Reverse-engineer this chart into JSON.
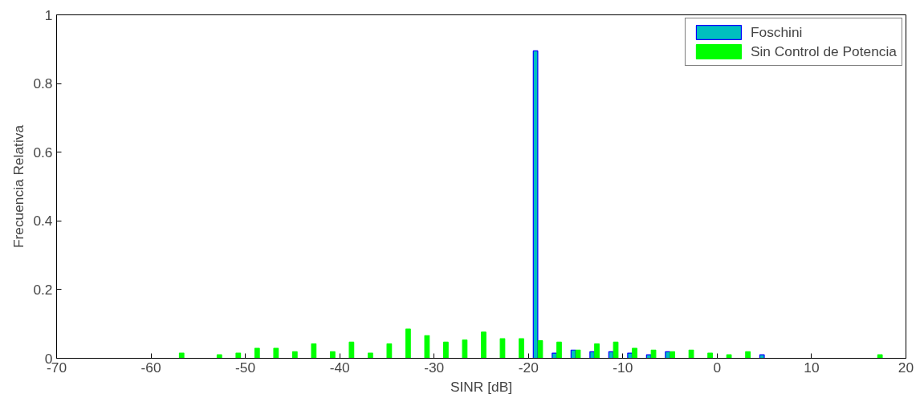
{
  "chart_data": {
    "type": "bar",
    "xlabel": "SINR [dB]",
    "ylabel": "Frecuencia Relativa",
    "x": [
      -69,
      -67,
      -65,
      -63,
      -61,
      -59,
      -57,
      -55,
      -53,
      -51,
      -49,
      -47,
      -45,
      -43,
      -41,
      -39,
      -37,
      -35,
      -33,
      -31,
      -29,
      -27,
      -25,
      -23,
      -21,
      -19,
      -17,
      -15,
      -13,
      -11,
      -9,
      -7,
      -5,
      -3,
      -1,
      1,
      3,
      5,
      7,
      9,
      11,
      13,
      15,
      17,
      19
    ],
    "series": [
      {
        "name": "Foschini",
        "color": "#0000ff",
        "values": [
          0,
          0,
          0,
          0,
          0,
          0,
          0,
          0,
          0,
          0,
          0,
          0,
          0,
          0,
          0,
          0,
          0,
          0,
          0,
          0,
          0,
          0,
          0,
          0,
          0,
          0.895,
          0.015,
          0.024,
          0.019,
          0.019,
          0.015,
          0.01,
          0.019,
          0,
          0,
          0,
          0,
          0.01,
          0,
          0,
          0,
          0,
          0,
          0,
          0
        ]
      },
      {
        "name": "Sin Control de Potencia",
        "color": "#00ff00",
        "values": [
          0,
          0,
          0,
          0,
          0,
          0,
          0.015,
          0,
          0.01,
          0.015,
          0.029,
          0.029,
          0.019,
          0.042,
          0.019,
          0.047,
          0.015,
          0.042,
          0.085,
          0.066,
          0.047,
          0.053,
          0.076,
          0.057,
          0.057,
          0.051,
          0.047,
          0.024,
          0.042,
          0.047,
          0.029,
          0.024,
          0.019,
          0.024,
          0.015,
          0.01,
          0.019,
          0,
          0,
          0,
          0,
          0,
          0,
          0.01,
          0
        ]
      }
    ],
    "xlim": [
      -70,
      20
    ],
    "xticks": [
      -70,
      -60,
      -50,
      -40,
      -30,
      -20,
      -10,
      0,
      10,
      20
    ],
    "ylim": [
      0,
      1
    ],
    "yticks": [
      0,
      0.2,
      0.4,
      0.6,
      0.8,
      1
    ],
    "grid": false,
    "legend": "top right"
  }
}
